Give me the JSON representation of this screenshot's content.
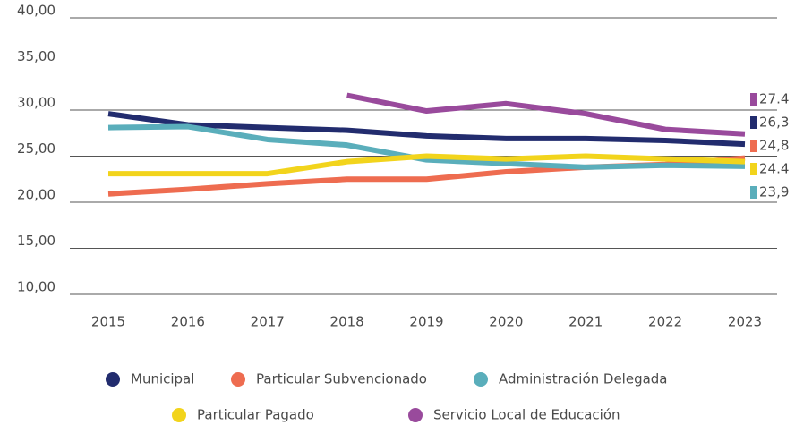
{
  "chart_data": {
    "type": "line",
    "x": [
      "2015",
      "2016",
      "2017",
      "2018",
      "2019",
      "2020",
      "2021",
      "2022",
      "2023"
    ],
    "series": [
      {
        "name": "Municipal",
        "color": "#222c6e",
        "values": [
          29.6,
          28.4,
          28.1,
          27.8,
          27.2,
          26.9,
          26.9,
          26.7,
          26.3
        ],
        "value_labels": [
          null,
          null,
          null,
          null,
          null,
          null,
          null,
          null,
          "26,3"
        ]
      },
      {
        "name": "Particular Subvencionado",
        "color": "#ee6c50",
        "values": [
          20.9,
          21.4,
          22.0,
          22.5,
          22.5,
          23.3,
          23.8,
          24.1,
          24.8
        ],
        "value_labels": [
          null,
          null,
          null,
          null,
          null,
          null,
          null,
          null,
          "24,8"
        ]
      },
      {
        "name": "Administración Delegada",
        "color": "#5aaebb",
        "values": [
          28.1,
          28.2,
          26.8,
          26.2,
          24.6,
          24.2,
          23.8,
          24.0,
          23.9
        ],
        "value_labels": [
          null,
          null,
          null,
          null,
          null,
          null,
          null,
          null,
          "23,9"
        ]
      },
      {
        "name": "Particular Pagado",
        "color": "#f2d41c",
        "values": [
          23.1,
          23.1,
          23.1,
          24.4,
          25.0,
          24.7,
          25.0,
          24.7,
          24.4
        ],
        "value_labels": [
          null,
          null,
          null,
          null,
          null,
          null,
          null,
          null,
          "24.4"
        ]
      },
      {
        "name": "Servicio Local de Educación",
        "color": "#994a9c",
        "values": [
          null,
          null,
          null,
          31.6,
          29.9,
          30.7,
          29.6,
          27.9,
          27.4
        ],
        "value_labels": [
          null,
          null,
          null,
          null,
          null,
          null,
          null,
          null,
          "27.4"
        ]
      }
    ],
    "ylim": [
      10,
      40
    ],
    "yticks": [
      {
        "value": 10,
        "label": "10,00"
      },
      {
        "value": 15,
        "label": "15,00"
      },
      {
        "value": 20,
        "label": "20,00"
      },
      {
        "value": 25,
        "label": "25,00"
      },
      {
        "value": 30,
        "label": "30,00"
      },
      {
        "value": 35,
        "label": "35,00"
      },
      {
        "value": 40,
        "label": "40,00"
      }
    ],
    "grid": true
  }
}
